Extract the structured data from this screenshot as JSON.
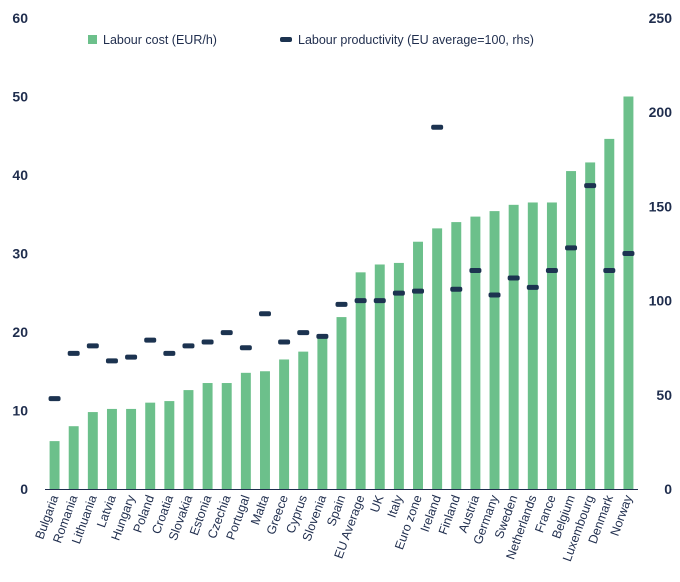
{
  "chart_data": {
    "type": "bar",
    "categories": [
      "Bulgaria",
      "Romania",
      "Lithuania",
      "Latvia",
      "Hungary",
      "Poland",
      "Croatia",
      "Slovakia",
      "Estonia",
      "Czechia",
      "Portugal",
      "Malta",
      "Greece",
      "Cyprus",
      "Slovenia",
      "Spain",
      "EU Average",
      "UK",
      "Italy",
      "Euro zone",
      "Ireland",
      "Finland",
      "Austria",
      "Germany",
      "Sweden",
      "Netherlands",
      "France",
      "Belgium",
      "Luxembourg",
      "Denmark",
      "Norway"
    ],
    "series": [
      {
        "name": "Labour cost (EUR/h)",
        "kind": "bar",
        "axis": "left",
        "color": "#6cc08b",
        "values": [
          6.1,
          8.0,
          9.8,
          10.2,
          10.2,
          11.0,
          11.2,
          12.6,
          13.5,
          13.5,
          14.8,
          15.0,
          16.5,
          17.5,
          19.2,
          21.9,
          27.6,
          28.6,
          28.8,
          31.5,
          33.2,
          34.0,
          34.7,
          35.4,
          36.2,
          36.5,
          36.5,
          40.5,
          41.6,
          44.6,
          50.0
        ]
      },
      {
        "name": "Labour productivity (EU average=100, rhs)",
        "kind": "marker",
        "axis": "right",
        "color": "#1c3350",
        "values": [
          48,
          72,
          76,
          68,
          70,
          79,
          72,
          76,
          78,
          83,
          75,
          93,
          78,
          83,
          81,
          98,
          100,
          100,
          104,
          105,
          192,
          106,
          116,
          103,
          112,
          107,
          116,
          128,
          161,
          116,
          125
        ]
      }
    ],
    "y_left": {
      "min": 0,
      "max": 60,
      "ticks": [
        0,
        10,
        20,
        30,
        40,
        50,
        60
      ]
    },
    "y_right": {
      "min": 0,
      "max": 250,
      "ticks": [
        0,
        50,
        100,
        150,
        200,
        250
      ]
    },
    "legend_placement": "top-left",
    "grid": false
  }
}
